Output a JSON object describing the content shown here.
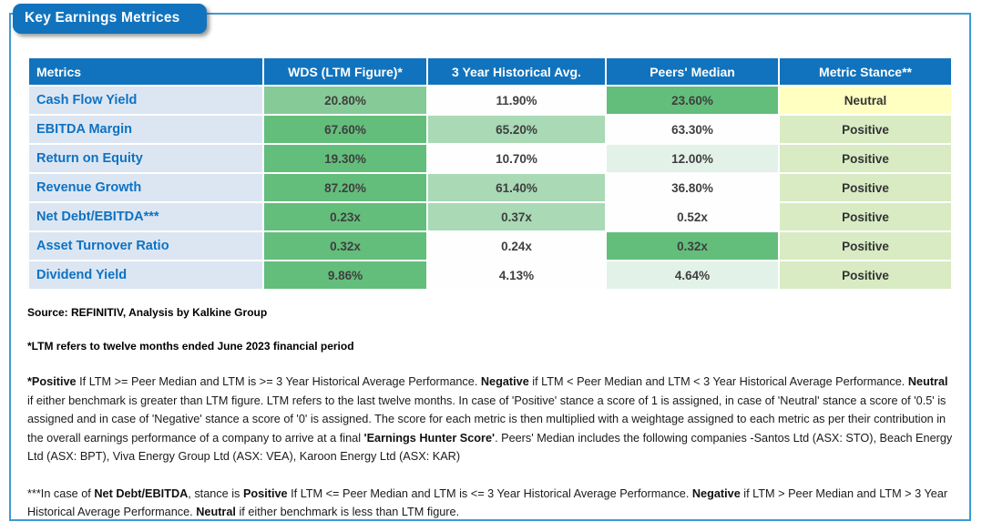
{
  "title": "Key Earnings Metrices",
  "colors": {
    "header_bg": "#1173BD",
    "title_bg": "#1173BD",
    "outer_border": "#3D9BD5",
    "metric_bg": "#DCE6F2",
    "metric_text": "#0E72C3",
    "green_dark": "#63BE7B",
    "green_medium": "#86CB97",
    "green_light": "#A9D9B5",
    "green_pale": "#E3F2E9",
    "cell_white": "#FDFEFD",
    "neutral_bg": "#FFFFC2",
    "positive_bg": "#D8EBC3"
  },
  "table": {
    "headers": [
      "Metrics",
      "WDS (LTM Figure)*",
      "3 Year Historical Avg.",
      "Peers' Median",
      "Metric Stance**"
    ],
    "rows": [
      {
        "metric": "Cash Flow Yield",
        "cells": [
          {
            "text": "20.80%",
            "bg": "#86CB97"
          },
          {
            "text": "11.90%",
            "bg": "#FDFEFD"
          },
          {
            "text": "23.60%",
            "bg": "#63BE7B"
          },
          {
            "text": "Neutral",
            "bg": "#FFFFC2"
          }
        ]
      },
      {
        "metric": "EBITDA Margin",
        "cells": [
          {
            "text": "67.60%",
            "bg": "#63BE7B"
          },
          {
            "text": "65.20%",
            "bg": "#A9D9B5"
          },
          {
            "text": "63.30%",
            "bg": "#FDFEFD"
          },
          {
            "text": "Positive",
            "bg": "#D8EBC3"
          }
        ]
      },
      {
        "metric": "Return on Equity",
        "cells": [
          {
            "text": "19.30%",
            "bg": "#63BE7B"
          },
          {
            "text": "10.70%",
            "bg": "#FDFEFD"
          },
          {
            "text": "12.00%",
            "bg": "#E3F2E9"
          },
          {
            "text": "Positive",
            "bg": "#D8EBC3"
          }
        ]
      },
      {
        "metric": "Revenue Growth",
        "cells": [
          {
            "text": "87.20%",
            "bg": "#63BE7B"
          },
          {
            "text": "61.40%",
            "bg": "#A9D9B5"
          },
          {
            "text": "36.80%",
            "bg": "#FDFEFD"
          },
          {
            "text": "Positive",
            "bg": "#D8EBC3"
          }
        ]
      },
      {
        "metric": "Net Debt/EBITDA***",
        "cells": [
          {
            "text": "0.23x",
            "bg": "#63BE7B"
          },
          {
            "text": "0.37x",
            "bg": "#A9D9B5"
          },
          {
            "text": "0.52x",
            "bg": "#FDFEFD"
          },
          {
            "text": "Positive",
            "bg": "#D8EBC3"
          }
        ]
      },
      {
        "metric": "Asset Turnover Ratio",
        "cells": [
          {
            "text": "0.32x",
            "bg": "#63BE7B"
          },
          {
            "text": "0.24x",
            "bg": "#FDFEFD"
          },
          {
            "text": "0.32x",
            "bg": "#63BE7B"
          },
          {
            "text": "Positive",
            "bg": "#D8EBC3"
          }
        ]
      },
      {
        "metric": "Dividend Yield",
        "cells": [
          {
            "text": "9.86%",
            "bg": "#63BE7B"
          },
          {
            "text": "4.13%",
            "bg": "#FDFEFD"
          },
          {
            "text": "4.64%",
            "bg": "#E3F2E9"
          },
          {
            "text": "Positive",
            "bg": "#D8EBC3"
          }
        ]
      }
    ]
  },
  "footnotes": {
    "source": "Source: REFINITIV, Analysis by Kalkine Group",
    "ltm_note": "*LTM refers to twelve months ended June 2023 financial period",
    "stance_note": [
      {
        "t": "*Positive",
        "b": true
      },
      {
        "t": " If LTM >= Peer Median and LTM is >= 3 Year Historical Average Performance. ",
        "b": false
      },
      {
        "t": "Negative",
        "b": true
      },
      {
        "t": " if LTM < Peer Median and LTM < 3 Year Historical Average Performance. ",
        "b": false
      },
      {
        "t": "Neutral",
        "b": true
      },
      {
        "t": " if either benchmark is greater than LTM figure. LTM refers to the last twelve months. In case of 'Positive' stance a score of 1 is assigned, in case of 'Neutral' stance a score of '0.5' is assigned and in case of 'Negative' stance a score of '0' is assigned. The score for each metric is then multiplied with a weightage assigned to each metric as per their contribution in the overall earnings performance of a company to arrive at a final ",
        "b": false
      },
      {
        "t": "'Earnings Hunter Score'",
        "b": true
      },
      {
        "t": ". Peers' Median includes the following companies -Santos Ltd  (ASX: STO), Beach Energy Ltd (ASX: BPT), Viva Energy Group Ltd (ASX: VEA), Karoon Energy Ltd  (ASX: KAR)",
        "b": false
      }
    ],
    "netdebt_note": [
      {
        "t": "***In case of ",
        "b": false
      },
      {
        "t": "Net Debt/EBITDA",
        "b": true
      },
      {
        "t": ", stance is ",
        "b": false
      },
      {
        "t": "Positive",
        "b": true
      },
      {
        "t": " If LTM <= Peer Median and LTM is <= 3 Year Historical Average Performance. ",
        "b": false
      },
      {
        "t": "Negative",
        "b": true
      },
      {
        "t": " if LTM > Peer Median and LTM > 3 Year Historical Average Performance. ",
        "b": false
      },
      {
        "t": "Neutral",
        "b": true
      },
      {
        "t": " if either benchmark is less than LTM figure.",
        "b": false
      }
    ]
  }
}
